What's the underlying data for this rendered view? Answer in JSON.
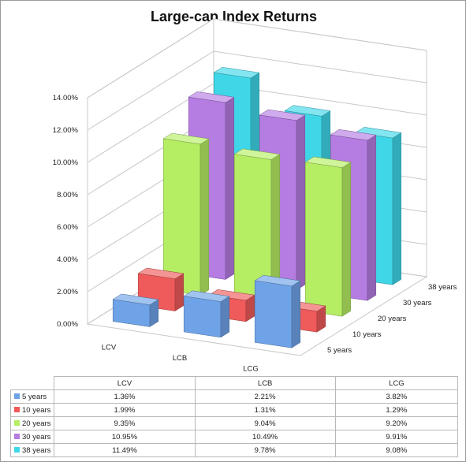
{
  "chart_data": {
    "type": "bar",
    "title": "Large-cap Index Returns",
    "categories": [
      "LCV",
      "LCB",
      "LCG"
    ],
    "series": [
      {
        "name": "5 years",
        "values": [
          1.36,
          2.21,
          3.82
        ],
        "labels": [
          "1.36%",
          "2.21%",
          "3.82%"
        ],
        "color": "#6fa3e8"
      },
      {
        "name": "10 years",
        "values": [
          1.99,
          1.31,
          1.29
        ],
        "labels": [
          "1.99%",
          "1.31%",
          "1.29%"
        ],
        "color": "#ef5a5a"
      },
      {
        "name": "20 years",
        "values": [
          9.35,
          9.04,
          9.2
        ],
        "labels": [
          "9.35%",
          "9.04%",
          "9.20%"
        ],
        "color": "#b5ee63"
      },
      {
        "name": "30 years",
        "values": [
          10.95,
          10.49,
          9.91
        ],
        "labels": [
          "10.95%",
          "10.49%",
          "9.91%"
        ],
        "color": "#b57ce2"
      },
      {
        "name": "38 years",
        "values": [
          11.49,
          9.78,
          9.08
        ],
        "labels": [
          "11.49%",
          "9.78%",
          "9.08%"
        ],
        "color": "#3fd7e8"
      }
    ],
    "y_ticks": [
      "0.00%",
      "2.00%",
      "4.00%",
      "6.00%",
      "8.00%",
      "10.00%",
      "12.00%",
      "14.00%"
    ],
    "ylim": [
      0,
      14
    ],
    "chart_style": "3d-column",
    "grid": true,
    "legend": "data-table-below"
  }
}
